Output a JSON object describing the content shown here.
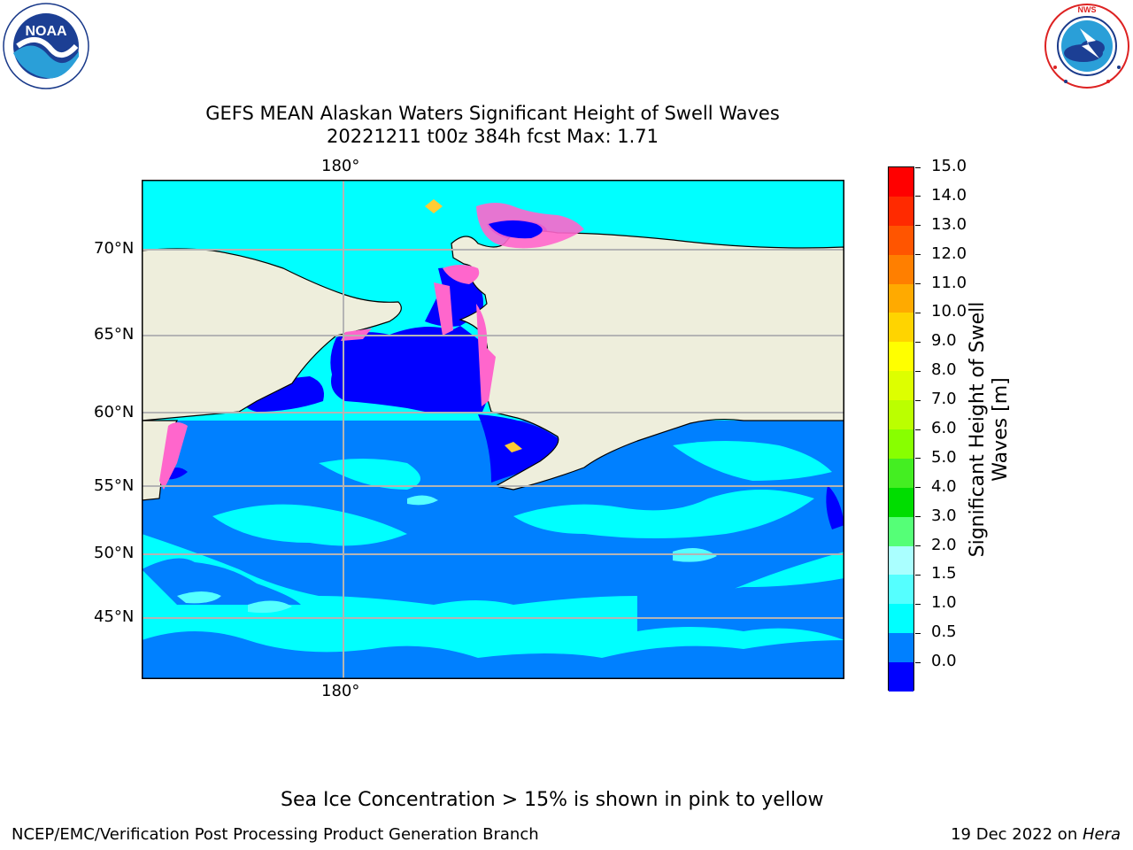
{
  "header": {
    "title_line1": "GEFS MEAN Alaskan Waters Significant Height of Swell Waves",
    "title_line2": "20221211 t00z 384h fcst   Max: 1.71"
  },
  "logos": {
    "left_text": "NOAA",
    "left_ring_text": "NATIONAL OCEANIC AND ATMOSPHERIC ADMINISTRATION · U.S. DEPARTMENT OF COMMERCE",
    "right_ring_text": "NATIONAL WEATHER SERVICE"
  },
  "map": {
    "top_lon_label": "180°",
    "bottom_lon_label": "180°",
    "lat_labels": [
      "70°N",
      "65°N",
      "60°N",
      "55°N",
      "50°N",
      "45°N"
    ]
  },
  "colorbar": {
    "title_line1": "Significant Height of Swell",
    "title_line2": "Waves [m]",
    "ticks": [
      "15.0",
      "14.0",
      "13.0",
      "12.0",
      "11.0",
      "10.0",
      "9.0",
      "8.0",
      "7.0",
      "6.0",
      "5.0",
      "4.0",
      "3.0",
      "2.0",
      "1.5",
      "1.0",
      "0.5",
      "0.0"
    ],
    "colors": [
      "#ff0000",
      "#ff2a00",
      "#ff5500",
      "#ff7f00",
      "#ffaa00",
      "#ffd400",
      "#ffff00",
      "#ddff00",
      "#bbff00",
      "#88ff00",
      "#44ee22",
      "#00dd00",
      "#55ff77",
      "#aaffff",
      "#55ffff",
      "#00ffff",
      "#0080ff",
      "#0000ff"
    ]
  },
  "colors": {
    "land": "#eeeedc",
    "sea_ice": "#ff66cc",
    "grid": "#b4b4b4"
  },
  "footer": {
    "note": "Sea Ice Concentration > 15% is shown in pink to yellow",
    "left": "NCEP/EMC/Verification Post Processing Product Generation Branch",
    "right_prefix": "19 Dec 2022 on ",
    "right_machine": "Hera"
  }
}
